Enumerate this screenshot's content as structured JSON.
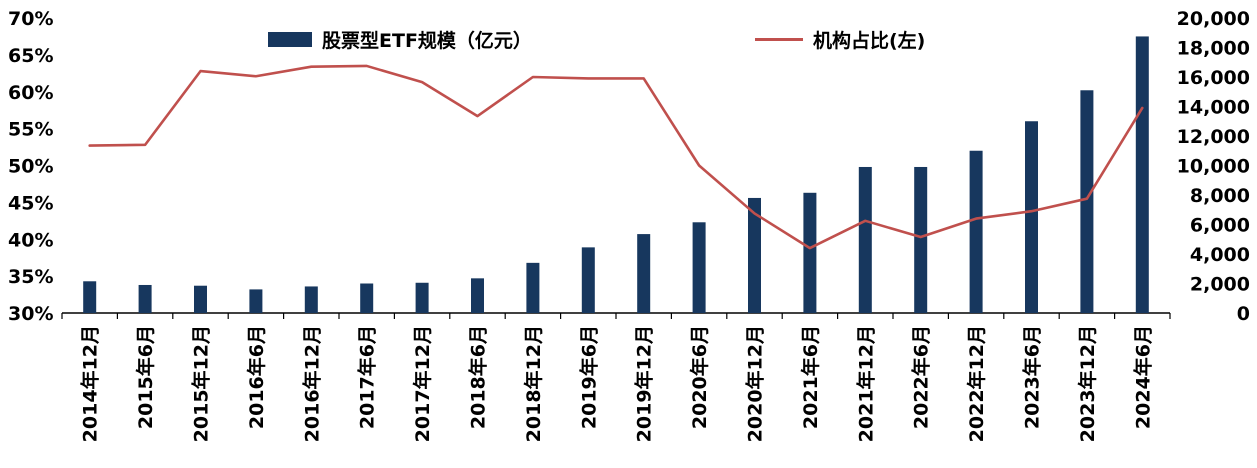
{
  "chart_data": {
    "type": "bar",
    "title": "",
    "grid": false,
    "legend_position": "top",
    "categories": [
      "2014年12月",
      "2015年6月",
      "2015年12月",
      "2016年6月",
      "2016年12月",
      "2017年6月",
      "2017年12月",
      "2018年6月",
      "2018年12月",
      "2019年6月",
      "2019年12月",
      "2020年6月",
      "2020年12月",
      "2021年6月",
      "2021年12月",
      "2022年6月",
      "2022年12月",
      "2023年6月",
      "2023年12月",
      "2024年6月"
    ],
    "series": [
      {
        "name": "股票型ETF规模（亿元）",
        "type": "bar",
        "axis": "right",
        "color": "#17375E",
        "values": [
          2150,
          1900,
          1850,
          1600,
          1800,
          2000,
          2050,
          2350,
          3400,
          4450,
          5350,
          6150,
          7800,
          8150,
          9900,
          9900,
          11000,
          13000,
          15100,
          18750
        ]
      },
      {
        "name": "机构占比(左)",
        "type": "line",
        "axis": "left",
        "color": "#C0504D",
        "values": [
          52.7,
          52.8,
          62.8,
          62.1,
          63.4,
          63.5,
          61.3,
          56.7,
          62.0,
          61.8,
          61.8,
          50.0,
          43.5,
          38.8,
          42.5,
          40.3,
          42.8,
          43.8,
          45.5,
          57.8
        ]
      }
    ],
    "left_axis": {
      "min": 30,
      "max": 70,
      "step": 5,
      "format": "percent",
      "ticks": [
        "30%",
        "35%",
        "40%",
        "45%",
        "50%",
        "55%",
        "60%",
        "65%",
        "70%"
      ]
    },
    "right_axis": {
      "min": 0,
      "max": 20000,
      "step": 2000,
      "ticks": [
        "0",
        "2,000",
        "4,000",
        "6,000",
        "8,000",
        "10,000",
        "12,000",
        "14,000",
        "16,000",
        "18,000",
        "20,000"
      ]
    }
  }
}
